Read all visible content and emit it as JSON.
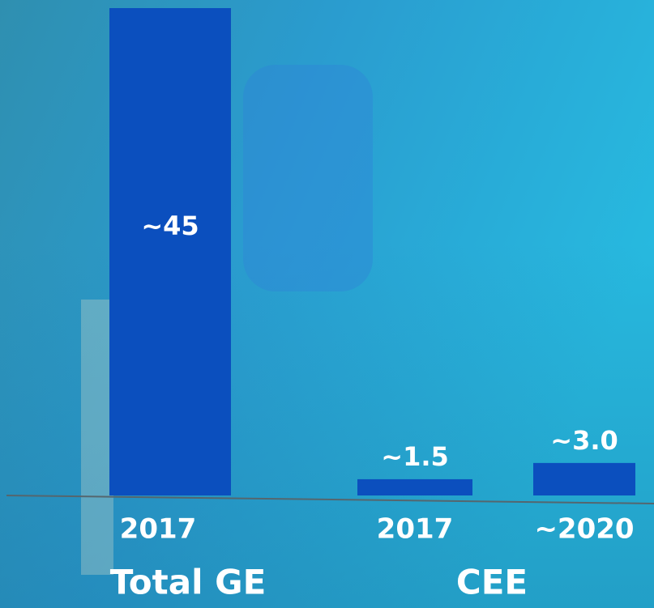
{
  "chart_data": {
    "type": "bar",
    "categories": [
      "2017",
      "2017",
      "~2020"
    ],
    "values": [
      45,
      1.5,
      3.0
    ],
    "value_labels": [
      "~45",
      "~1.5",
      "~3.0"
    ],
    "group_labels": [
      "Total GE",
      "CEE"
    ],
    "color": "#0b4fbe"
  }
}
